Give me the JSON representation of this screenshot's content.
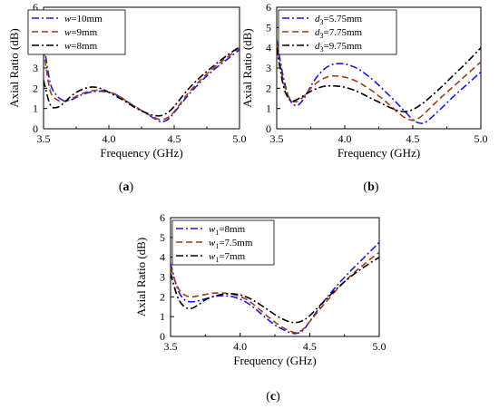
{
  "chart_data": [
    {
      "type": "line",
      "panel_label": "(a)",
      "xlabel": "Frequency (GHz)",
      "ylabel": "Axial Ratio (dB)",
      "xlim": [
        3.5,
        5.0
      ],
      "ylim": [
        0,
        6
      ],
      "xticks": [
        "3.5",
        "4.0",
        "4.5",
        "5.0"
      ],
      "yticks": [
        "0",
        "1",
        "2",
        "3",
        "4",
        "5",
        "6"
      ],
      "grid": false,
      "legend_position": "top-left",
      "series": [
        {
          "legend_prefix": "w",
          "legend_suffix": "=10mm",
          "color": "#1a1adb",
          "dash": "dashdot",
          "x": [
            3.5,
            3.55,
            3.6,
            3.65,
            3.7,
            3.75,
            3.8,
            3.85,
            3.9,
            3.95,
            4.0,
            4.05,
            4.1,
            4.15,
            4.2,
            4.25,
            4.3,
            4.35,
            4.4,
            4.45,
            4.5,
            4.6,
            4.7,
            4.8,
            4.9,
            5.0
          ],
          "y": [
            4.3,
            2.3,
            1.65,
            1.4,
            1.4,
            1.55,
            1.7,
            1.8,
            1.85,
            1.85,
            1.8,
            1.7,
            1.5,
            1.3,
            1.1,
            0.9,
            0.7,
            0.5,
            0.35,
            0.45,
            0.8,
            1.6,
            2.3,
            2.9,
            3.4,
            3.9
          ]
        },
        {
          "legend_prefix": "w",
          "legend_suffix": "=9mm",
          "color": "#a03c14",
          "dash": "dash",
          "x": [
            3.5,
            3.55,
            3.6,
            3.65,
            3.7,
            3.75,
            3.8,
            3.85,
            3.9,
            3.95,
            4.0,
            4.05,
            4.1,
            4.15,
            4.2,
            4.25,
            4.3,
            4.35,
            4.4,
            4.45,
            4.5,
            4.6,
            4.7,
            4.8,
            4.9,
            5.0
          ],
          "y": [
            3.9,
            1.9,
            1.45,
            1.35,
            1.45,
            1.6,
            1.75,
            1.85,
            1.9,
            1.9,
            1.82,
            1.7,
            1.52,
            1.3,
            1.1,
            0.9,
            0.72,
            0.55,
            0.45,
            0.55,
            0.85,
            1.7,
            2.4,
            3.0,
            3.5,
            4.0
          ]
        },
        {
          "legend_prefix": "w",
          "legend_suffix": "=8mm",
          "color": "#000000",
          "dash": "dashdot",
          "x": [
            3.5,
            3.55,
            3.6,
            3.65,
            3.7,
            3.75,
            3.8,
            3.85,
            3.9,
            3.95,
            4.0,
            4.05,
            4.1,
            4.15,
            4.2,
            4.25,
            4.3,
            4.35,
            4.4,
            4.45,
            4.5,
            4.6,
            4.7,
            4.8,
            4.9,
            5.0
          ],
          "y": [
            2.4,
            1.2,
            1.05,
            1.25,
            1.55,
            1.8,
            1.95,
            2.05,
            2.05,
            1.95,
            1.8,
            1.62,
            1.45,
            1.25,
            1.05,
            0.88,
            0.75,
            0.65,
            0.65,
            0.8,
            1.1,
            1.9,
            2.55,
            3.1,
            3.6,
            4.05
          ]
        }
      ]
    },
    {
      "type": "line",
      "panel_label": "(b)",
      "xlabel": "Frequency (GHz)",
      "ylabel": "Axial Ratio (dB)",
      "xlim": [
        3.5,
        5.0
      ],
      "ylim": [
        0,
        6
      ],
      "xticks": [
        "3.5",
        "4.0",
        "4.5",
        "5.0"
      ],
      "yticks": [
        "0",
        "1",
        "2",
        "3",
        "4",
        "5",
        "6"
      ],
      "grid": false,
      "legend_position": "top-left",
      "series": [
        {
          "legend_prefix": "d",
          "legend_sub": "3",
          "legend_suffix": "=5.75mm",
          "color": "#1a1adb",
          "dash": "dashdot",
          "x": [
            3.5,
            3.55,
            3.6,
            3.65,
            3.7,
            3.75,
            3.8,
            3.85,
            3.9,
            3.95,
            4.0,
            4.05,
            4.1,
            4.15,
            4.2,
            4.25,
            4.3,
            4.35,
            4.4,
            4.45,
            4.5,
            4.55,
            4.6,
            4.7,
            4.8,
            4.9,
            5.0
          ],
          "y": [
            4.4,
            2.5,
            1.4,
            1.15,
            1.5,
            2.1,
            2.6,
            2.95,
            3.15,
            3.22,
            3.2,
            3.1,
            2.95,
            2.72,
            2.45,
            2.15,
            1.82,
            1.5,
            1.15,
            0.8,
            0.45,
            0.28,
            0.35,
            0.95,
            1.6,
            2.2,
            2.8
          ]
        },
        {
          "legend_prefix": "d",
          "legend_sub": "3",
          "legend_suffix": "=7.75mm",
          "color": "#a03c14",
          "dash": "dash",
          "x": [
            3.5,
            3.55,
            3.6,
            3.65,
            3.7,
            3.75,
            3.8,
            3.85,
            3.9,
            3.95,
            4.0,
            4.05,
            4.1,
            4.15,
            4.2,
            4.25,
            4.3,
            4.35,
            4.4,
            4.45,
            4.5,
            4.55,
            4.6,
            4.7,
            4.8,
            4.9,
            5.0
          ],
          "y": [
            4.2,
            2.3,
            1.45,
            1.35,
            1.6,
            2.0,
            2.3,
            2.5,
            2.6,
            2.6,
            2.55,
            2.45,
            2.3,
            2.1,
            1.88,
            1.62,
            1.35,
            1.05,
            0.75,
            0.52,
            0.42,
            0.55,
            0.85,
            1.5,
            2.1,
            2.7,
            3.3
          ]
        },
        {
          "legend_prefix": "d",
          "legend_sub": "3",
          "legend_suffix": "=9.75mm",
          "color": "#000000",
          "dash": "dashdot",
          "x": [
            3.5,
            3.55,
            3.6,
            3.65,
            3.7,
            3.75,
            3.8,
            3.85,
            3.9,
            3.95,
            4.0,
            4.05,
            4.1,
            4.15,
            4.2,
            4.25,
            4.3,
            4.35,
            4.4,
            4.45,
            4.5,
            4.55,
            4.6,
            4.7,
            4.8,
            4.9,
            5.0
          ],
          "y": [
            4.0,
            2.1,
            1.4,
            1.45,
            1.65,
            1.85,
            2.0,
            2.1,
            2.12,
            2.1,
            2.05,
            1.95,
            1.82,
            1.65,
            1.48,
            1.32,
            1.15,
            1.0,
            0.88,
            0.85,
            0.95,
            1.15,
            1.4,
            2.0,
            2.65,
            3.3,
            4.0
          ]
        }
      ]
    },
    {
      "type": "line",
      "panel_label": "(c)",
      "xlabel": "Frequency (GHz)",
      "ylabel": "Axial Ratio (dB)",
      "xlim": [
        3.5,
        5.0
      ],
      "ylim": [
        0,
        6
      ],
      "xticks": [
        "3.5",
        "4.0",
        "4.5",
        "5.0"
      ],
      "yticks": [
        "0",
        "1",
        "2",
        "3",
        "4",
        "5",
        "6"
      ],
      "grid": false,
      "legend_position": "top-left",
      "series": [
        {
          "legend_prefix": "w",
          "legend_sub": "1",
          "legend_suffix": "=8mm",
          "color": "#1a1adb",
          "dash": "dashdot",
          "x": [
            3.5,
            3.55,
            3.6,
            3.65,
            3.7,
            3.75,
            3.8,
            3.85,
            3.9,
            3.95,
            4.0,
            4.05,
            4.1,
            4.15,
            4.2,
            4.25,
            4.3,
            4.35,
            4.4,
            4.45,
            4.5,
            4.6,
            4.7,
            4.8,
            4.9,
            5.0
          ],
          "y": [
            3.7,
            2.4,
            1.85,
            1.75,
            1.8,
            1.9,
            2.0,
            2.05,
            2.05,
            2.0,
            1.88,
            1.7,
            1.45,
            1.15,
            0.85,
            0.58,
            0.38,
            0.22,
            0.15,
            0.3,
            0.75,
            1.75,
            2.6,
            3.35,
            4.05,
            4.75
          ]
        },
        {
          "legend_prefix": "w",
          "legend_sub": "1",
          "legend_suffix": "=7.5mm",
          "color": "#a03c14",
          "dash": "dash",
          "x": [
            3.5,
            3.55,
            3.6,
            3.65,
            3.7,
            3.75,
            3.8,
            3.85,
            3.9,
            3.95,
            4.0,
            4.05,
            4.1,
            4.15,
            4.2,
            4.25,
            4.3,
            4.35,
            4.4,
            4.45,
            4.5,
            4.6,
            4.7,
            4.8,
            4.9,
            5.0
          ],
          "y": [
            3.5,
            2.5,
            2.1,
            2.0,
            2.05,
            2.12,
            2.18,
            2.2,
            2.18,
            2.12,
            2.02,
            1.85,
            1.6,
            1.3,
            1.0,
            0.72,
            0.48,
            0.3,
            0.2,
            0.35,
            0.75,
            1.6,
            2.4,
            3.1,
            3.7,
            4.25
          ]
        },
        {
          "legend_prefix": "w",
          "legend_sub": "1",
          "legend_suffix": "=7mm",
          "color": "#000000",
          "dash": "dashdot",
          "x": [
            3.5,
            3.55,
            3.6,
            3.65,
            3.7,
            3.75,
            3.8,
            3.85,
            3.9,
            3.95,
            4.0,
            4.05,
            4.1,
            4.15,
            4.2,
            4.25,
            4.3,
            4.35,
            4.4,
            4.45,
            4.5,
            4.6,
            4.7,
            4.8,
            4.9,
            5.0
          ],
          "y": [
            3.2,
            2.0,
            1.5,
            1.42,
            1.6,
            1.85,
            2.0,
            2.1,
            2.15,
            2.15,
            2.1,
            1.98,
            1.8,
            1.58,
            1.35,
            1.1,
            0.9,
            0.75,
            0.7,
            0.8,
            1.05,
            1.75,
            2.45,
            3.05,
            3.55,
            4.0
          ]
        }
      ]
    }
  ]
}
